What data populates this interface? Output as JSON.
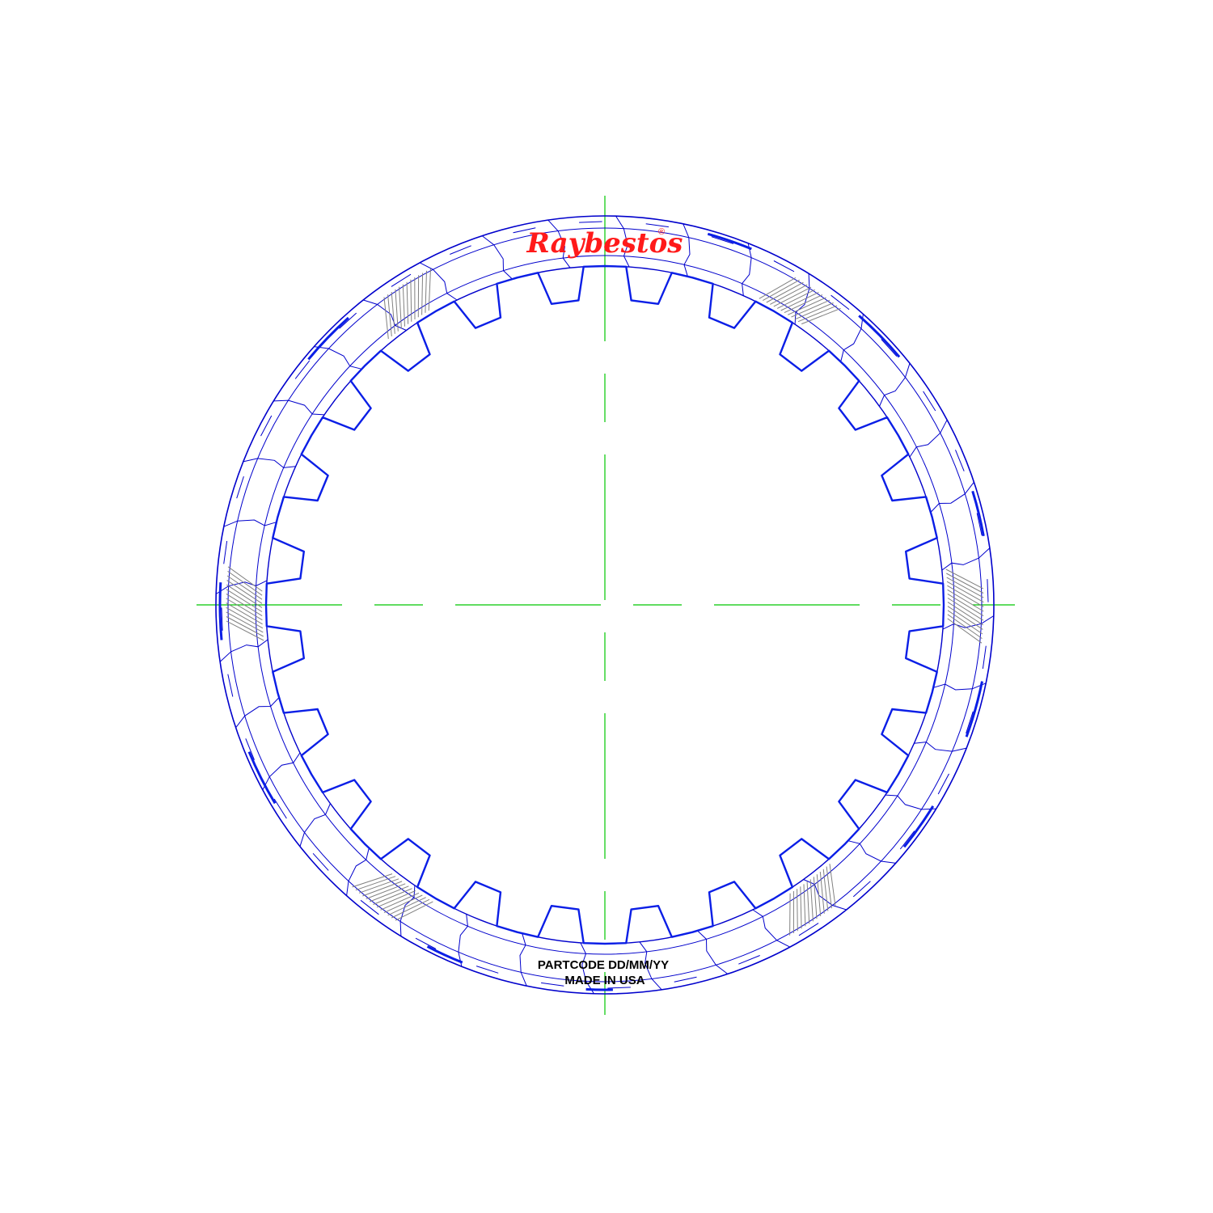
{
  "drawing": {
    "brand": {
      "name": "Raybestos",
      "registered_mark": "®",
      "color": "#ff1a1a"
    },
    "stamp": {
      "line1": "PARTCODE DD/MM/YY",
      "line2": "MADE IN USA",
      "color": "#000000"
    },
    "colors": {
      "outline": "#0000cc",
      "outline_heavy": "#0a1ee6",
      "centerline": "#00c800",
      "groove": "#808080"
    },
    "plate": {
      "internal_teeth": 24,
      "segment_count": 36,
      "groove_patches": 6
    }
  }
}
